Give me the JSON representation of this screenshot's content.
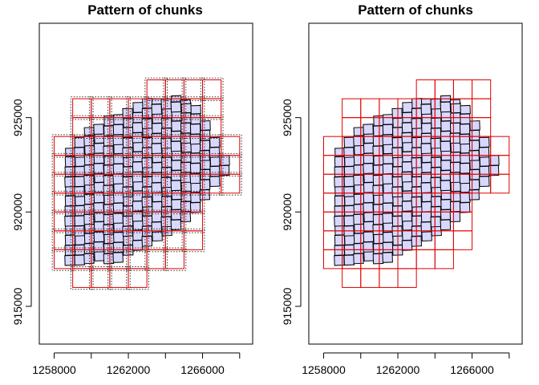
{
  "chart_data": [
    {
      "type": "scatter",
      "title": "Pattern of chunks",
      "xlabel": "",
      "ylabel": "",
      "xlim": [
        1257200,
        1268700
      ],
      "ylim": [
        913000,
        930000
      ],
      "x_ticks": [
        1258000,
        1260000,
        1262000,
        1264000,
        1266000,
        1268000
      ],
      "x_tick_labels": [
        "1258000",
        "",
        "1262000",
        "",
        "1266000",
        ""
      ],
      "y_ticks": [
        915000,
        920000,
        925000
      ],
      "y_tick_labels": [
        "915000",
        "920000",
        "925000"
      ],
      "chunk_buffer": 100,
      "chunks": [
        {
          "x": [
            1258000,
            1259000
          ],
          "y": [
            917000,
            924000
          ]
        },
        {
          "x": [
            1259000,
            1260000
          ],
          "y": [
            916000,
            926000
          ]
        },
        {
          "x": [
            1260000,
            1261000
          ],
          "y": [
            916000,
            926000
          ]
        },
        {
          "x": [
            1261000,
            1262000
          ],
          "y": [
            916000,
            926000
          ]
        },
        {
          "x": [
            1262000,
            1263000
          ],
          "y": [
            916000,
            926000
          ]
        },
        {
          "x": [
            1263000,
            1264000
          ],
          "y": [
            917000,
            927000
          ]
        },
        {
          "x": [
            1264000,
            1265000
          ],
          "y": [
            917000,
            927000
          ]
        },
        {
          "x": [
            1265000,
            1266000
          ],
          "y": [
            918000,
            927000
          ]
        },
        {
          "x": [
            1266000,
            1267000
          ],
          "y": [
            921000,
            927000
          ]
        },
        {
          "x": [
            1267000,
            1268000
          ],
          "y": [
            921000,
            924000
          ]
        }
      ],
      "tile_region": {
        "x": [
          1258600,
          1267400
        ],
        "y_min": [
          917200,
          917200,
          917400,
          917200,
          917800,
          918200,
          918600,
          919200,
          920000,
          921200,
          922200
        ],
        "y_max": [
          923000,
          924200,
          924800,
          925200,
          925800,
          926000,
          926000,
          926200,
          925600,
          924200,
          922600
        ]
      }
    },
    {
      "type": "scatter",
      "title": "Pattern of chunks",
      "xlabel": "",
      "ylabel": "",
      "xlim": [
        1257200,
        1268700
      ],
      "ylim": [
        913000,
        930000
      ],
      "x_ticks": [
        1258000,
        1260000,
        1262000,
        1264000,
        1266000,
        1268000
      ],
      "x_tick_labels": [
        "1258000",
        "",
        "1262000",
        "",
        "1266000",
        ""
      ],
      "y_ticks": [
        915000,
        920000,
        925000
      ],
      "y_tick_labels": [
        "915000",
        "920000",
        "925000"
      ],
      "chunk_buffer": 0,
      "chunks": [
        {
          "x": [
            1258000,
            1259000
          ],
          "y": [
            917000,
            924000
          ]
        },
        {
          "x": [
            1259000,
            1260000
          ],
          "y": [
            916000,
            926000
          ]
        },
        {
          "x": [
            1260000,
            1261000
          ],
          "y": [
            916000,
            926000
          ]
        },
        {
          "x": [
            1261000,
            1262000
          ],
          "y": [
            916000,
            926000
          ]
        },
        {
          "x": [
            1262000,
            1263000
          ],
          "y": [
            916000,
            926000
          ]
        },
        {
          "x": [
            1263000,
            1264000
          ],
          "y": [
            917000,
            927000
          ]
        },
        {
          "x": [
            1264000,
            1265000
          ],
          "y": [
            917000,
            927000
          ]
        },
        {
          "x": [
            1265000,
            1266000
          ],
          "y": [
            918000,
            927000
          ]
        },
        {
          "x": [
            1266000,
            1267000
          ],
          "y": [
            921000,
            927000
          ]
        },
        {
          "x": [
            1267000,
            1268000
          ],
          "y": [
            921000,
            924000
          ]
        }
      ],
      "tile_region": {
        "x": [
          1258600,
          1267400
        ],
        "y_min": [
          917200,
          917200,
          917400,
          917200,
          917800,
          918200,
          918600,
          919200,
          920000,
          921200,
          922200
        ],
        "y_max": [
          923000,
          924200,
          924800,
          925200,
          925800,
          926000,
          926000,
          926200,
          925600,
          924200,
          922600
        ]
      }
    }
  ]
}
